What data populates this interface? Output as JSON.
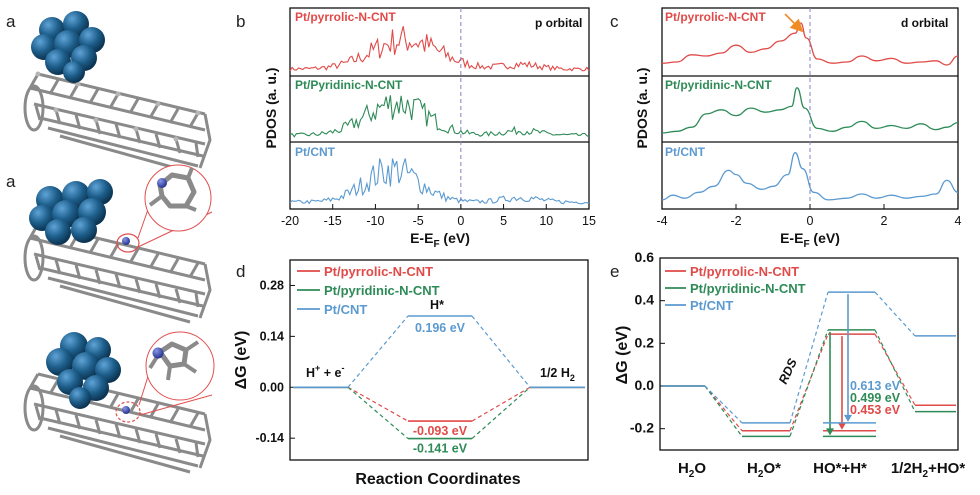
{
  "panel_letters": {
    "a1": "a",
    "a2": "a",
    "b": "b",
    "c": "c",
    "d": "d",
    "e": "e"
  },
  "colors": {
    "red": "#e04a48",
    "green": "#2e8b57",
    "blue": "#5b9ad0",
    "pt": "#1e5f8c",
    "carbon": "#9a9a9a",
    "nitrogen": "#3b4fb0"
  },
  "chart_data": [
    {
      "id": "b",
      "type": "line",
      "title": "p orbital",
      "xlabel": "E-E_F (eV)",
      "ylabel": "PDOS (a. u.)",
      "xlim": [
        -20,
        15
      ],
      "xticks": [
        -20,
        -15,
        -10,
        -5,
        0,
        5,
        10,
        15
      ],
      "fermi_level": 0,
      "series": [
        {
          "name": "Pt/pyrrolic-N-CNT",
          "color": "#e04a48",
          "peak_center": -6.5,
          "peak_width": 5.5,
          "amplitude": 0.75
        },
        {
          "name": "Pt/Pyridinic-N-CNT",
          "color": "#2e8b57",
          "peak_center": -7.5,
          "peak_width": 5,
          "amplitude": 0.85
        },
        {
          "name": "Pt/CNT",
          "color": "#5b9ad0",
          "peak_center": -8,
          "peak_width": 4.5,
          "amplitude": 0.85
        }
      ]
    },
    {
      "id": "c",
      "type": "line",
      "title": "d orbital",
      "xlabel": "E-E_F (eV)",
      "ylabel": "PDOS (a. u.)",
      "xlim": [
        -4,
        4
      ],
      "xticks": [
        -4,
        -2,
        0,
        2,
        4
      ],
      "fermi_level": 0,
      "series": [
        {
          "name": "Pt/pyrrolic-N-CNT",
          "color": "#e04a48",
          "points": [
            [
              -4,
              0.18
            ],
            [
              -3.6,
              0.2
            ],
            [
              -3.2,
              0.32
            ],
            [
              -2.8,
              0.3
            ],
            [
              -2.4,
              0.35
            ],
            [
              -2.0,
              0.48
            ],
            [
              -1.6,
              0.36
            ],
            [
              -1.2,
              0.42
            ],
            [
              -0.8,
              0.55
            ],
            [
              -0.4,
              0.68
            ],
            [
              -0.25,
              0.85
            ],
            [
              -0.1,
              0.6
            ],
            [
              0.2,
              0.25
            ],
            [
              0.6,
              0.18
            ],
            [
              1.0,
              0.2
            ],
            [
              1.4,
              0.3
            ],
            [
              1.8,
              0.22
            ],
            [
              2.2,
              0.26
            ],
            [
              2.6,
              0.18
            ],
            [
              3.0,
              0.2
            ],
            [
              3.4,
              0.22
            ],
            [
              3.7,
              0.15
            ],
            [
              4,
              0.3
            ]
          ]
        },
        {
          "name": "Pt/pyridinic-N-CNT",
          "color": "#2e8b57",
          "points": [
            [
              -4,
              0.12
            ],
            [
              -3.6,
              0.15
            ],
            [
              -3.2,
              0.22
            ],
            [
              -2.8,
              0.45
            ],
            [
              -2.4,
              0.52
            ],
            [
              -2.0,
              0.42
            ],
            [
              -1.6,
              0.55
            ],
            [
              -1.2,
              0.48
            ],
            [
              -0.8,
              0.52
            ],
            [
              -0.5,
              0.58
            ],
            [
              -0.35,
              0.9
            ],
            [
              -0.15,
              0.55
            ],
            [
              0.2,
              0.2
            ],
            [
              0.6,
              0.15
            ],
            [
              1.0,
              0.22
            ],
            [
              1.4,
              0.32
            ],
            [
              1.8,
              0.2
            ],
            [
              2.2,
              0.25
            ],
            [
              2.6,
              0.2
            ],
            [
              3.0,
              0.28
            ],
            [
              3.4,
              0.18
            ],
            [
              3.7,
              0.22
            ],
            [
              4,
              0.3
            ]
          ]
        },
        {
          "name": "Pt/CNT",
          "color": "#5b9ad0",
          "points": [
            [
              -4,
              0.12
            ],
            [
              -3.7,
              0.2
            ],
            [
              -3.4,
              0.15
            ],
            [
              -3.0,
              0.25
            ],
            [
              -2.6,
              0.35
            ],
            [
              -2.2,
              0.62
            ],
            [
              -2.0,
              0.55
            ],
            [
              -1.7,
              0.4
            ],
            [
              -1.3,
              0.3
            ],
            [
              -1.0,
              0.35
            ],
            [
              -0.6,
              0.55
            ],
            [
              -0.4,
              0.92
            ],
            [
              -0.2,
              0.65
            ],
            [
              0.1,
              0.25
            ],
            [
              0.5,
              0.12
            ],
            [
              1.0,
              0.15
            ],
            [
              1.4,
              0.22
            ],
            [
              1.8,
              0.15
            ],
            [
              2.2,
              0.2
            ],
            [
              2.6,
              0.15
            ],
            [
              3.0,
              0.18
            ],
            [
              3.4,
              0.22
            ],
            [
              3.7,
              0.45
            ],
            [
              4,
              0.25
            ]
          ]
        }
      ],
      "annotations": [
        "arrow pointing to the d-band peak of Pt/pyrrolic-N-CNT near the Fermi level"
      ]
    },
    {
      "id": "d",
      "type": "line",
      "xlabel": "Reaction Coordinates",
      "ylabel": "ΔG (eV)",
      "ylim": [
        -0.2,
        0.35
      ],
      "yticks": [
        "0.28",
        "0.14",
        "0.00",
        "-0.14"
      ],
      "ytick_values": [
        0.28,
        0.14,
        0.0,
        -0.14
      ],
      "states": [
        "H⁺ + e⁻",
        "H*",
        "1/2 H₂"
      ],
      "state_labels": {
        "reactant": "H",
        "reactant_sup": "+",
        "reactant_mid": " + e",
        "reactant_sup2": "-",
        "intermediate": "H*",
        "product": "1/2 H",
        "product_sub": "2"
      },
      "series": [
        {
          "name": "Pt/pyrrolic-N-CNT",
          "color": "#e04a48",
          "values": [
            0,
            -0.093,
            0
          ],
          "label": "-0.093 eV"
        },
        {
          "name": "Pt/pyridinic-N-CNT",
          "color": "#2e8b57",
          "values": [
            0,
            -0.141,
            0
          ],
          "label": "-0.141 eV"
        },
        {
          "name": "Pt/CNT",
          "color": "#5b9ad0",
          "values": [
            0,
            0.196,
            0
          ],
          "label": "0.196 eV"
        }
      ]
    },
    {
      "id": "e",
      "type": "line",
      "ylabel": "ΔG (eV)",
      "ylim": [
        -0.3,
        0.6
      ],
      "yticks": [
        "0.6",
        "0.4",
        "0.2",
        "0.0",
        "-0.2"
      ],
      "ytick_values": [
        0.6,
        0.4,
        0.2,
        0.0,
        -0.2
      ],
      "states": [
        "H₂O",
        "H₂O*",
        "HO*+H*",
        "1/2H₂+HO*"
      ],
      "state_labels": {
        "s1": "H",
        "s1b": "O",
        "s2": "H",
        "s2b": "O*",
        "s3": "HO*+H*",
        "s4": "1/2H",
        "s4b": "+HO*"
      },
      "rds_label": "RDS",
      "series": [
        {
          "name": "Pt/pyrrolic-N-CNT",
          "color": "#e04a48",
          "values": [
            0,
            -0.21,
            0.243,
            -0.09
          ],
          "ts_base": -0.21,
          "label": "0.453 eV"
        },
        {
          "name": "Pt/pyridinic-N-CNT",
          "color": "#2e8b57",
          "values": [
            0,
            -0.236,
            0.263,
            -0.12
          ],
          "ts_base": -0.236,
          "label": "0.499 eV"
        },
        {
          "name": "Pt/CNT",
          "color": "#5b9ad0",
          "values": [
            0,
            -0.173,
            0.44,
            0.235
          ],
          "ts_base": -0.173,
          "label": "0.613 eV"
        }
      ]
    }
  ]
}
